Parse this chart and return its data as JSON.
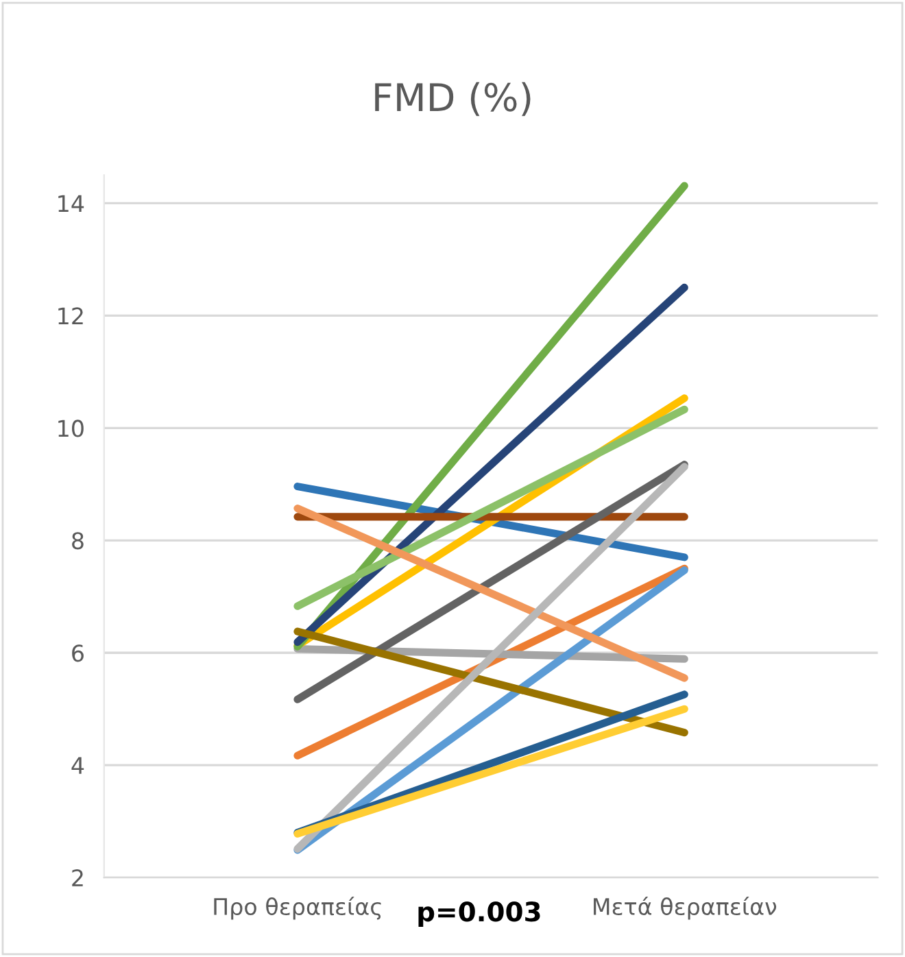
{
  "chart_data": {
    "type": "line",
    "title": "FMD (%)",
    "categories": [
      "Προ θεραπείας",
      "Μετά θεραπείαν"
    ],
    "series": [
      {
        "color": "#2e75b6",
        "values": [
          8.96,
          7.7
        ]
      },
      {
        "color": "#ed7d31",
        "values": [
          4.17,
          7.5
        ]
      },
      {
        "color": "#a5a5a5",
        "values": [
          6.07,
          5.89
        ]
      },
      {
        "color": "#ffc000",
        "values": [
          6.13,
          10.53
        ]
      },
      {
        "color": "#5b9bd5",
        "values": [
          2.49,
          7.47
        ]
      },
      {
        "color": "#70ad47",
        "values": [
          6.11,
          14.31
        ]
      },
      {
        "color": "#264478",
        "values": [
          6.19,
          12.5
        ]
      },
      {
        "color": "#9e480e",
        "values": [
          8.42,
          8.42
        ]
      },
      {
        "color": "#636363",
        "values": [
          5.17,
          9.35
        ]
      },
      {
        "color": "#997300",
        "values": [
          6.38,
          4.58
        ]
      },
      {
        "color": "#8cc168",
        "values": [
          6.83,
          10.33
        ]
      },
      {
        "color": "#f1975a",
        "values": [
          8.57,
          5.55
        ]
      },
      {
        "color": "#b7b7b7",
        "values": [
          2.51,
          9.31
        ]
      },
      {
        "color": "#255e91",
        "values": [
          2.8,
          5.26
        ]
      },
      {
        "color": "#ffcd33",
        "values": [
          2.78,
          5.0
        ]
      }
    ],
    "ylim": [
      2,
      14.5
    ],
    "yticks": [
      2,
      4,
      6,
      8,
      10,
      12,
      14
    ],
    "grid": "y",
    "legend": false,
    "annotations": [
      "p=0.003"
    ]
  }
}
